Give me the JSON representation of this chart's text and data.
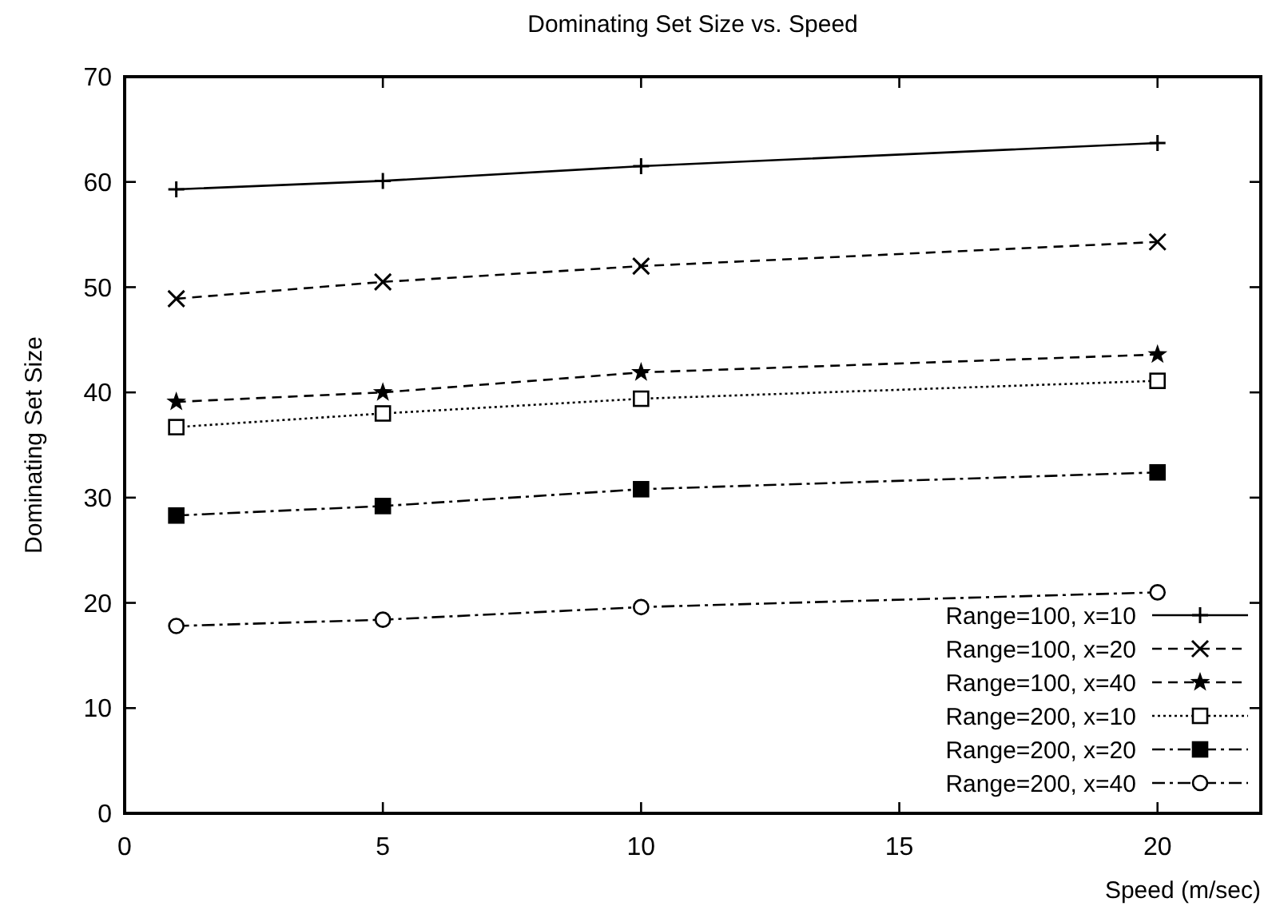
{
  "chart_data": {
    "type": "line",
    "title": "Dominating Set Size vs. Speed",
    "xlabel": "Speed (m/sec)",
    "ylabel": "Dominating Set Size",
    "x": [
      1,
      5,
      10,
      20
    ],
    "series": [
      {
        "name": "Range=100, x=10",
        "color": "#000000",
        "values": [
          59.3,
          60.1,
          61.5,
          63.7
        ],
        "marker": "cross",
        "line_style": "solid"
      },
      {
        "name": "Range=100, x=20",
        "color": "#000000",
        "values": [
          48.9,
          50.5,
          52.0,
          54.3
        ],
        "marker": "cross",
        "line_style": "dashed"
      },
      {
        "name": "Range=100, x=40",
        "color": "#000000",
        "values": [
          39.1,
          40.0,
          41.9,
          43.6
        ],
        "marker": "star",
        "line_style": "dashed"
      },
      {
        "name": "Range=200, x=10",
        "color": "#000000",
        "values": [
          36.7,
          38.0,
          39.4,
          41.1
        ],
        "marker": "square",
        "line_style": "dotted"
      },
      {
        "name": "Range=200, x=20",
        "color": "#000000",
        "values": [
          28.3,
          29.2,
          30.8,
          32.4
        ],
        "marker": "square",
        "line_style": "dashdot"
      },
      {
        "name": "Range=200, x=40",
        "color": "#000000",
        "values": [
          17.8,
          18.4,
          19.6,
          21.0
        ],
        "marker": "circle",
        "line_style": "dashdot"
      }
    ],
    "xlim": [
      0,
      22
    ],
    "xticks": [
      0,
      5,
      10,
      15,
      20
    ],
    "ylim": [
      0,
      70
    ],
    "yticks": [
      0,
      10,
      20,
      30,
      40,
      50,
      60,
      70
    ],
    "grid": false,
    "legend": "bottom right"
  }
}
